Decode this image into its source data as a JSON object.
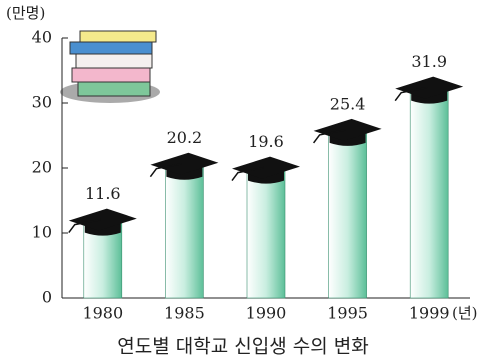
{
  "chart_data": {
    "type": "bar",
    "title": "연도별 대학교 신입생 수의 변화",
    "y_label": "(만명)",
    "x_label": "(년)",
    "categories": [
      "1980",
      "1985",
      "1990",
      "1995",
      "1999"
    ],
    "values": [
      11.6,
      20.2,
      19.6,
      25.4,
      31.9
    ],
    "color": "#7fcfb0",
    "ylim": [
      0,
      40
    ],
    "yticks": [
      0,
      10,
      20,
      30,
      40
    ],
    "grid": false
  }
}
